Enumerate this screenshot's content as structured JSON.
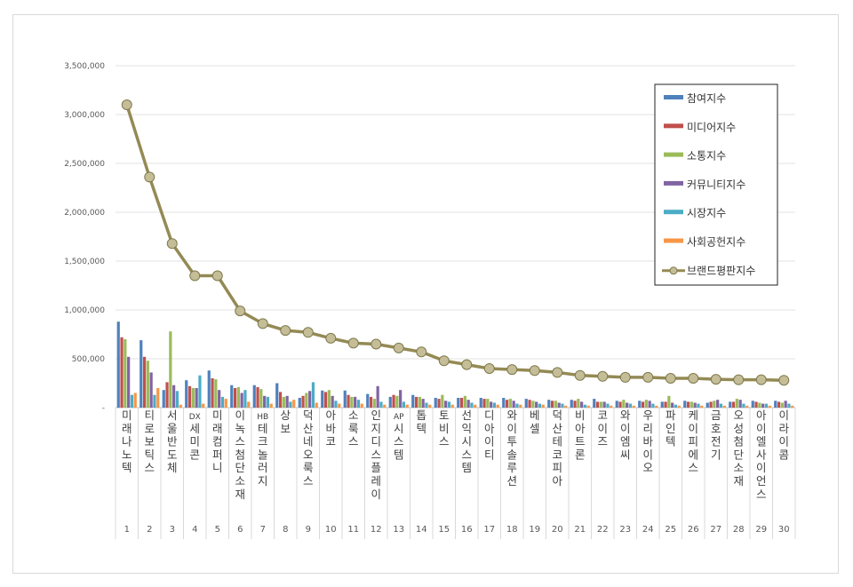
{
  "chart_data": {
    "type": "bar",
    "title": "",
    "xlabel": "",
    "ylabel": "",
    "ylim": [
      0,
      3500000
    ],
    "y_ticks": [
      "-",
      "500,000",
      "1,000,000",
      "1,500,000",
      "2,000,000",
      "2,500,000",
      "3,000,000",
      "3,500,000"
    ],
    "grid": true,
    "legend_position": "top-right",
    "ranks": [
      "1",
      "2",
      "3",
      "4",
      "5",
      "6",
      "7",
      "8",
      "9",
      "10",
      "11",
      "12",
      "13",
      "14",
      "15",
      "16",
      "17",
      "18",
      "19",
      "20",
      "21",
      "22",
      "23",
      "24",
      "25",
      "26",
      "27",
      "28",
      "29",
      "30"
    ],
    "categories": [
      "미래나노텍",
      "티로보틱스",
      "서울반도체",
      "DX세미콘",
      "미래컴퍼니",
      "이녹스첨단소재",
      "HB테크놀러지",
      "상보",
      "덕산네오룩스",
      "아바코",
      "소룩스",
      "인지디스플레이",
      "AP시스템",
      "톱텍",
      "토비스",
      "선익시스템",
      "디아이티",
      "와이투솔루션",
      "베셀",
      "덕산테코피아",
      "비아트론",
      "코이즈",
      "와이엠씨",
      "우리바이오",
      "파인텍",
      "케이피에스",
      "금호전기",
      "오성첨단소재",
      "아이엘사이언스",
      "이라이콤"
    ],
    "series": [
      {
        "name": "참여지수",
        "color": "#4f81bd",
        "values": [
          880000,
          690000,
          180000,
          280000,
          380000,
          230000,
          230000,
          250000,
          100000,
          175000,
          175000,
          140000,
          110000,
          130000,
          100000,
          100000,
          100000,
          100000,
          90000,
          80000,
          80000,
          90000,
          70000,
          70000,
          60000,
          70000,
          50000,
          60000,
          70000,
          70000
        ]
      },
      {
        "name": "미디어지수",
        "color": "#c0504d",
        "values": [
          720000,
          520000,
          260000,
          220000,
          300000,
          200000,
          210000,
          160000,
          120000,
          160000,
          130000,
          110000,
          130000,
          110000,
          90000,
          100000,
          90000,
          80000,
          80000,
          70000,
          70000,
          60000,
          60000,
          60000,
          60000,
          60000,
          60000,
          60000,
          60000,
          60000
        ]
      },
      {
        "name": "소통지수",
        "color": "#9bbb59",
        "values": [
          700000,
          480000,
          780000,
          200000,
          290000,
          210000,
          190000,
          110000,
          150000,
          180000,
          110000,
          90000,
          120000,
          110000,
          130000,
          120000,
          90000,
          90000,
          70000,
          70000,
          90000,
          60000,
          80000,
          80000,
          120000,
          60000,
          70000,
          90000,
          50000,
          50000
        ]
      },
      {
        "name": "커뮤니티지수",
        "color": "#8064a2",
        "values": [
          520000,
          360000,
          230000,
          200000,
          180000,
          150000,
          120000,
          120000,
          170000,
          120000,
          110000,
          220000,
          180000,
          90000,
          70000,
          80000,
          60000,
          70000,
          60000,
          50000,
          60000,
          60000,
          50000,
          70000,
          50000,
          50000,
          80000,
          80000,
          40000,
          70000
        ]
      },
      {
        "name": "시장지수",
        "color": "#4bacc6",
        "values": [
          130000,
          130000,
          170000,
          330000,
          110000,
          180000,
          110000,
          60000,
          260000,
          70000,
          80000,
          60000,
          60000,
          50000,
          60000,
          50000,
          50000,
          40000,
          40000,
          40000,
          30000,
          40000,
          40000,
          40000,
          30000,
          40000,
          40000,
          40000,
          40000,
          40000
        ]
      },
      {
        "name": "사회공헌지수",
        "color": "#f79646",
        "values": [
          150000,
          200000,
          30000,
          40000,
          90000,
          60000,
          40000,
          80000,
          50000,
          40000,
          40000,
          30000,
          30000,
          30000,
          30000,
          30000,
          30000,
          30000,
          30000,
          20000,
          20000,
          20000,
          20000,
          20000,
          20000,
          20000,
          20000,
          20000,
          20000,
          20000
        ]
      }
    ],
    "line_series": {
      "name": "브랜드평판지수",
      "color": "#948a54",
      "values": [
        3100000,
        2360000,
        1680000,
        1350000,
        1350000,
        990000,
        860000,
        790000,
        770000,
        710000,
        660000,
        650000,
        610000,
        570000,
        480000,
        440000,
        400000,
        390000,
        380000,
        360000,
        330000,
        320000,
        310000,
        310000,
        300000,
        300000,
        290000,
        285000,
        285000,
        280000
      ]
    }
  }
}
